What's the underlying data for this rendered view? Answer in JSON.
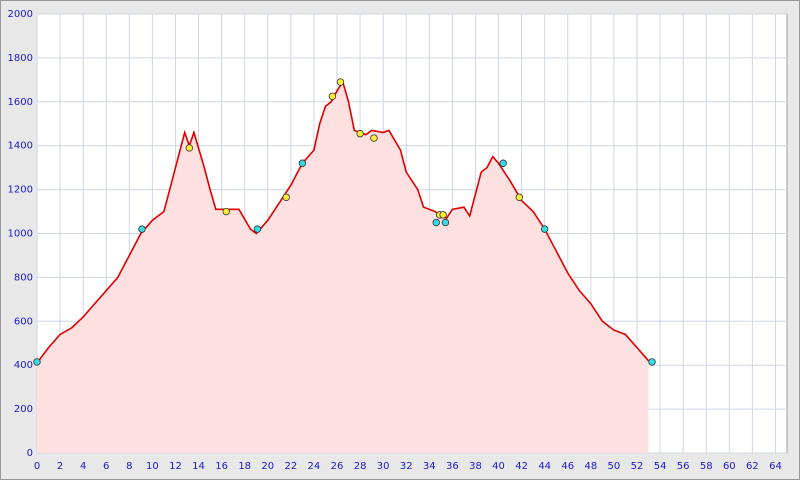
{
  "chart_data": {
    "type": "area",
    "x": [
      0,
      1,
      2,
      3,
      4,
      5,
      6,
      7,
      8,
      9,
      10,
      11,
      12,
      12.8,
      13.2,
      13.6,
      14.5,
      15,
      15.5,
      16.5,
      17.5,
      18.5,
      19,
      20,
      21,
      22,
      23,
      24,
      24.5,
      25,
      25.5,
      26,
      26.5,
      27,
      27.5,
      28.5,
      29,
      30,
      30.5,
      31.5,
      32,
      33,
      33.5,
      34.5,
      35,
      35.5,
      36,
      37,
      37.5,
      38,
      38.5,
      39,
      39.5,
      40,
      41,
      42,
      43,
      44,
      45,
      46,
      47,
      48,
      49,
      50,
      51,
      52,
      53
    ],
    "values": [
      410,
      480,
      540,
      570,
      620,
      680,
      740,
      800,
      900,
      1000,
      1060,
      1100,
      1300,
      1460,
      1400,
      1460,
      1300,
      1200,
      1110,
      1110,
      1110,
      1020,
      1000,
      1060,
      1140,
      1220,
      1320,
      1380,
      1500,
      1580,
      1600,
      1650,
      1690,
      1600,
      1470,
      1450,
      1470,
      1460,
      1470,
      1380,
      1280,
      1200,
      1120,
      1100,
      1080,
      1070,
      1110,
      1120,
      1080,
      1180,
      1280,
      1300,
      1350,
      1320,
      1240,
      1150,
      1100,
      1020,
      920,
      820,
      740,
      680,
      600,
      560,
      540,
      480,
      420
    ],
    "color": "#e00000",
    "fill": "#ffe0e0",
    "markers": [
      {
        "color": "#33dde8",
        "x": [
          0,
          9.1,
          19.1,
          23,
          34.6,
          35.4,
          40.4,
          44,
          53.3
        ],
        "values": [
          415,
          1020,
          1020,
          1320,
          1050,
          1050,
          1320,
          1020,
          415
        ]
      },
      {
        "color": "#ffee33",
        "x": [
          13.2,
          16.4,
          21.6,
          25.6,
          26.3,
          28,
          29.2,
          34.9,
          35.2,
          41.8
        ],
        "values": [
          1390,
          1100,
          1165,
          1625,
          1690,
          1455,
          1435,
          1085,
          1085,
          1165
        ]
      }
    ],
    "xlim": [
      0,
      65
    ],
    "ylim": [
      0,
      2000
    ],
    "xticks": [
      0,
      2,
      4,
      6,
      8,
      10,
      12,
      14,
      16,
      18,
      20,
      22,
      24,
      26,
      28,
      30,
      32,
      34,
      36,
      38,
      40,
      42,
      44,
      46,
      48,
      50,
      52,
      54,
      56,
      58,
      60,
      62,
      64
    ],
    "yticks": [
      0,
      200,
      400,
      600,
      800,
      1000,
      1200,
      1400,
      1600,
      1800,
      2000
    ],
    "grid": true
  }
}
